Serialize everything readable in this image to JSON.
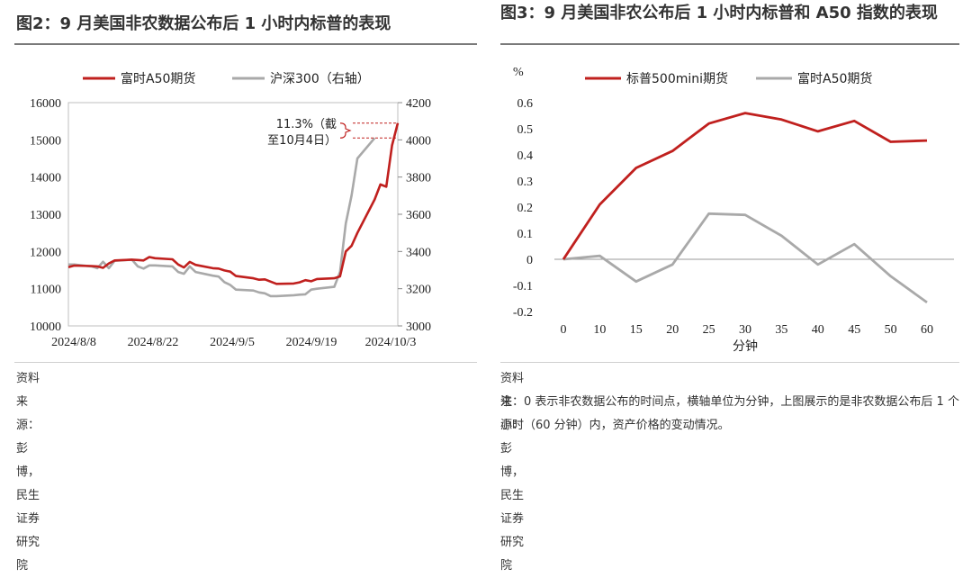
{
  "left": {
    "title": "图2：9 月美国非农数据公布后 1 小时内标普的表现",
    "source": "资料来源：彭博，民生证券研究院",
    "annotation": [
      "11.3%（截",
      "至10月4日）"
    ],
    "chart_data": {
      "type": "line",
      "x_tick_labels": [
        "2024/8/8",
        "2024/8/22",
        "2024/9/5",
        "2024/9/19",
        "2024/10/3"
      ],
      "y_left_ticks": [
        "10000",
        "11000",
        "12000",
        "13000",
        "14000",
        "15000",
        "16000"
      ],
      "y_right_ticks": [
        "3000",
        "3200",
        "3400",
        "3600",
        "3800",
        "4000",
        "4200"
      ],
      "ylim_left": [
        10000,
        16000
      ],
      "ylim_right": [
        3000,
        4200
      ],
      "legend_position": "top-center",
      "series": [
        {
          "name": "富时A50期货",
          "axis": "left",
          "color": "#c0201e",
          "x": [
            "2024-08-08",
            "2024-08-09",
            "2024-08-12",
            "2024-08-13",
            "2024-08-14",
            "2024-08-15",
            "2024-08-16",
            "2024-08-19",
            "2024-08-20",
            "2024-08-21",
            "2024-08-22",
            "2024-08-23",
            "2024-08-26",
            "2024-08-27",
            "2024-08-28",
            "2024-08-29",
            "2024-08-30",
            "2024-09-02",
            "2024-09-03",
            "2024-09-04",
            "2024-09-05",
            "2024-09-06",
            "2024-09-09",
            "2024-09-10",
            "2024-09-11",
            "2024-09-12",
            "2024-09-13",
            "2024-09-16",
            "2024-09-17",
            "2024-09-18",
            "2024-09-19",
            "2024-09-20",
            "2024-09-23",
            "2024-09-24",
            "2024-09-25",
            "2024-09-26",
            "2024-09-27",
            "2024-09-30",
            "2024-10-01",
            "2024-10-02",
            "2024-10-03",
            "2024-10-04"
          ],
          "values": [
            11580,
            11620,
            11610,
            11600,
            11560,
            11680,
            11760,
            11780,
            11770,
            11760,
            11850,
            11820,
            11790,
            11650,
            11570,
            11720,
            11640,
            11550,
            11540,
            11490,
            11460,
            11340,
            11280,
            11240,
            11250,
            11190,
            11130,
            11140,
            11170,
            11230,
            11200,
            11260,
            11280,
            11330,
            12000,
            12150,
            12500,
            13400,
            13800,
            13740,
            14850,
            15450
          ]
        },
        {
          "name": "沪深300（右轴）",
          "axis": "right",
          "color": "#a9a9a9",
          "x": [
            "2024-08-08",
            "2024-08-09",
            "2024-08-12",
            "2024-08-13",
            "2024-08-14",
            "2024-08-15",
            "2024-08-16",
            "2024-08-19",
            "2024-08-20",
            "2024-08-21",
            "2024-08-22",
            "2024-08-23",
            "2024-08-26",
            "2024-08-27",
            "2024-08-28",
            "2024-08-29",
            "2024-08-30",
            "2024-09-02",
            "2024-09-03",
            "2024-09-04",
            "2024-09-05",
            "2024-09-06",
            "2024-09-09",
            "2024-09-10",
            "2024-09-11",
            "2024-09-12",
            "2024-09-13",
            "2024-09-16",
            "2024-09-17",
            "2024-09-18",
            "2024-09-19",
            "2024-09-20",
            "2024-09-23",
            "2024-09-24",
            "2024-09-25",
            "2024-09-26",
            "2024-09-27",
            "2024-09-30"
          ],
          "values": [
            3330,
            3330,
            3320,
            3310,
            3345,
            3310,
            3350,
            3356,
            3320,
            3308,
            3325,
            3325,
            3320,
            3290,
            3280,
            3320,
            3290,
            3270,
            3265,
            3235,
            3220,
            3195,
            3190,
            3180,
            3175,
            3160,
            3160,
            3165,
            3168,
            3170,
            3195,
            3200,
            3210,
            3290,
            3550,
            3700,
            3900,
            4010
          ]
        }
      ]
    }
  },
  "right": {
    "title": "图3：9 月美国非农公布后 1 小时内标普和 A50 指数的表现",
    "source": "资料来源：彭博，民生证券研究院",
    "note": "注：0 表示非农数据公布的时间点，横轴单位为分钟，上图展示的是非农数据公布后 1 个小时（60 分钟）内，资产价格的变动情况。",
    "chart_data": {
      "type": "line",
      "ylabel": "%",
      "xlabel": "分钟",
      "categories": [
        "0",
        "10",
        "15",
        "20",
        "25",
        "30",
        "35",
        "40",
        "45",
        "50",
        "60"
      ],
      "y_ticks": [
        "-0.2",
        "-0.1",
        "0",
        "0.1",
        "0.2",
        "0.3",
        "0.4",
        "0.5",
        "0.6"
      ],
      "ylim": [
        -0.2,
        0.6
      ],
      "legend_position": "top-center",
      "series": [
        {
          "name": "标普500mini期货",
          "color": "#c0201e",
          "values": [
            0,
            0.21,
            0.35,
            0.415,
            0.52,
            0.56,
            0.535,
            0.49,
            0.53,
            0.45,
            0.455
          ]
        },
        {
          "name": "富时A50期货",
          "color": "#a9a9a9",
          "values": [
            0,
            0.013,
            -0.085,
            -0.02,
            0.175,
            0.17,
            0.09,
            -0.02,
            0.058,
            -0.065,
            -0.165
          ]
        }
      ]
    }
  }
}
